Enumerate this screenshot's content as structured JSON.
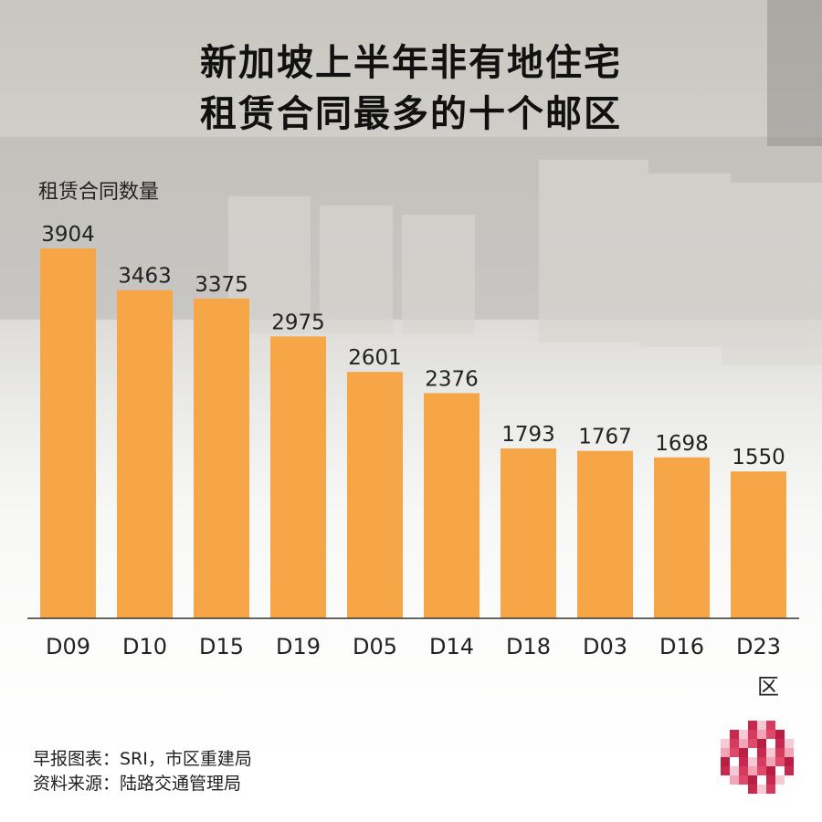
{
  "title_line1": "新加坡上半年非有地住宅",
  "title_line2": "租赁合同最多的十个邮区",
  "footer": {
    "source_line1": "早报图表：SRI，市区重建局",
    "source_line2": "资料来源：陆路交通管理局"
  },
  "colors": {
    "bar": "#F7A647",
    "text": "#222222",
    "axis": "#333333"
  },
  "chart_data": {
    "type": "bar",
    "categories": [
      "D09",
      "D10",
      "D15",
      "D19",
      "D05",
      "D14",
      "D18",
      "D03",
      "D16",
      "D23"
    ],
    "values": [
      3904,
      3463,
      3375,
      2975,
      2601,
      2376,
      1793,
      1767,
      1698,
      1550
    ],
    "ylabel": "租赁合同数量",
    "xlabel": "区",
    "ylim": [
      0,
      4400
    ],
    "grid": false,
    "legend": "none"
  }
}
